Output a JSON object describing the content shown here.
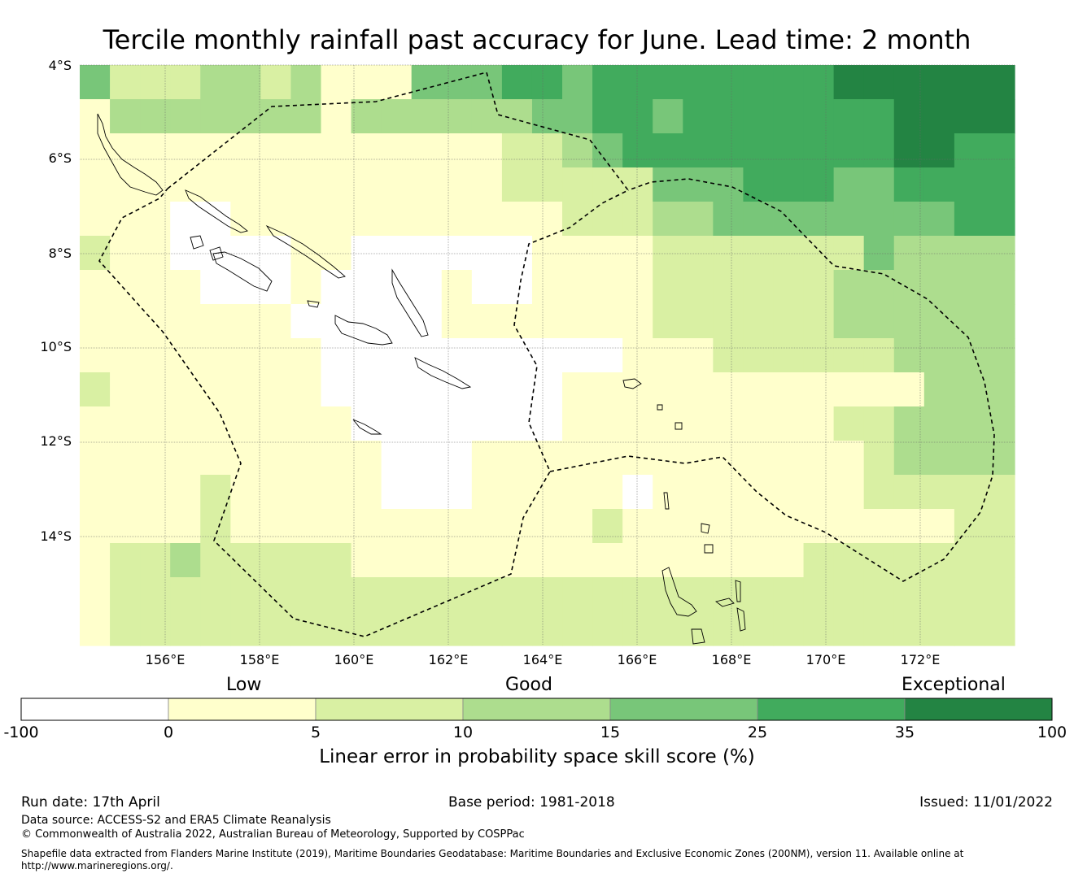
{
  "title": "Tercile monthly rainfall past accuracy for June. Lead time: 2 month",
  "map": {
    "lat_labels": [
      "4°S",
      "6°S",
      "8°S",
      "10°S",
      "12°S",
      "14°S"
    ],
    "lon_labels": [
      "156°E",
      "158°E",
      "160°E",
      "162°E",
      "164°E",
      "166°E",
      "168°E",
      "170°E",
      "172°E"
    ],
    "extent": {
      "lon_min": 154.2,
      "lon_max": 174.0,
      "lat_min": -16.0,
      "lat_max": -4.0
    },
    "grid_cell_deg": 0.833,
    "boundary_style": "dashed black line (maritime boundary / EEZ)",
    "coastline_color": "#000000"
  },
  "legend": {
    "categories": [
      "Low",
      "Good",
      "Exceptional"
    ],
    "bins": [
      {
        "from": "-100",
        "to": "0",
        "color": "#ffffff"
      },
      {
        "from": "0",
        "to": "5",
        "color": "#ffffcc"
      },
      {
        "from": "5",
        "to": "10",
        "color": "#d9f0a3"
      },
      {
        "from": "10",
        "to": "15",
        "color": "#addd8e"
      },
      {
        "from": "15",
        "to": "25",
        "color": "#78c679"
      },
      {
        "from": "25",
        "to": "35",
        "color": "#41ab5d"
      },
      {
        "from": "35",
        "to": "100",
        "color": "#238443"
      }
    ],
    "tick_labels": [
      "-100",
      "0",
      "5",
      "10",
      "15",
      "25",
      "35",
      "100"
    ],
    "title": "Linear error in probability space skill score (%)"
  },
  "footer": {
    "run_date": "Run date: 17th April",
    "base_period": "Base period: 1981-2018",
    "issued": "Issued: 11/01/2022",
    "data_source": "Data source: ACCESS-S2 and ERA5 Climate Reanalysis",
    "copyright": "© Commonwealth of Australia 2022, Australian Bureau of Meteorology, Supported by COSPPac",
    "shapefile_line1": "Shapefile data extracted from Flanders Marine Institute (2019), Maritime Boundaries Geodatabase: Maritime Boundaries and Exclusive Economic Zones (200NM), version 11. Available online at",
    "shapefile_line2": "http://www.marineregions.org/."
  }
}
